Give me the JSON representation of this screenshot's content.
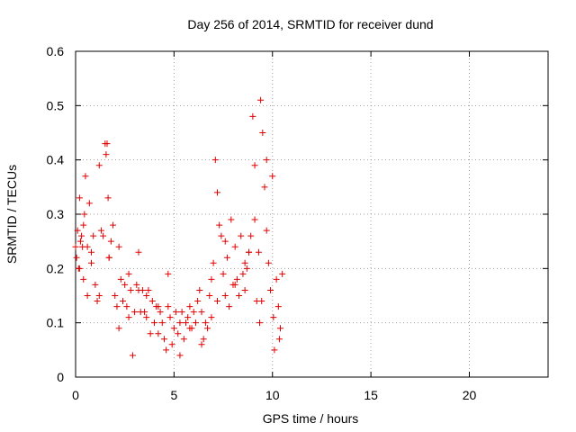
{
  "chart_data": {
    "type": "scatter",
    "title": "Day 256 of 2014, SRMTID for receiver dund",
    "xlabel": "GPS time / hours",
    "ylabel": "SRMTID / TECUs",
    "xlim": [
      0,
      24
    ],
    "ylim": [
      0,
      0.6
    ],
    "x_ticks": [
      0,
      5,
      10,
      15,
      20
    ],
    "y_ticks": [
      0,
      0.1,
      0.2,
      0.3,
      0.4,
      0.5,
      0.6
    ],
    "x_tick_labels": [
      "0",
      "5",
      "10",
      "15",
      "20"
    ],
    "y_tick_labels": [
      "0",
      "0.1",
      "0.2",
      "0.3",
      "0.4",
      "0.5",
      "0.6"
    ],
    "grid": true,
    "marker": "plus",
    "color": "#e00000",
    "series": [
      {
        "x": [
          0.0,
          0.05,
          0.1,
          0.15,
          0.2,
          0.25,
          0.3,
          0.35,
          0.4,
          0.45,
          0.5,
          0.6,
          0.7,
          0.8,
          0.9,
          1.0,
          1.1,
          1.2,
          1.3,
          1.4,
          1.5,
          1.55,
          1.6,
          1.65,
          1.7,
          1.8,
          1.9,
          2.0,
          2.1,
          2.2,
          2.3,
          2.4,
          2.5,
          2.6,
          2.7,
          2.8,
          2.9,
          3.0,
          3.1,
          3.2,
          3.3,
          3.4,
          3.5,
          3.6,
          3.7,
          3.8,
          3.9,
          4.0,
          4.1,
          4.2,
          4.3,
          4.4,
          4.5,
          4.6,
          4.7,
          4.8,
          4.9,
          5.0,
          5.1,
          5.2,
          5.3,
          5.4,
          5.5,
          5.6,
          5.7,
          5.8,
          5.9,
          6.0,
          6.1,
          6.2,
          6.3,
          6.4,
          6.5,
          6.6,
          6.7,
          6.8,
          6.9,
          7.0,
          7.1,
          7.2,
          7.3,
          7.4,
          7.5,
          7.6,
          7.7,
          7.8,
          7.9,
          8.0,
          8.1,
          8.2,
          8.3,
          8.4,
          8.5,
          8.6,
          8.7,
          8.8,
          8.9,
          9.0,
          9.1,
          9.2,
          9.3,
          9.35,
          9.4,
          9.5,
          9.6,
          9.7,
          9.8,
          9.9,
          10.0,
          10.1,
          10.2,
          10.3,
          10.4,
          10.5,
          0.2,
          0.4,
          0.6,
          0.8,
          1.2,
          1.7,
          2.2,
          2.7,
          3.2,
          3.6,
          4.2,
          4.7,
          5.3,
          5.8,
          6.4,
          6.9,
          7.2,
          7.6,
          8.1,
          8.6,
          8.8,
          9.1,
          9.45,
          9.7,
          10.05,
          10.35
        ],
        "y": [
          0.24,
          0.22,
          0.27,
          0.2,
          0.33,
          0.25,
          0.26,
          0.24,
          0.18,
          0.3,
          0.37,
          0.24,
          0.32,
          0.21,
          0.26,
          0.17,
          0.14,
          0.15,
          0.27,
          0.26,
          0.43,
          0.41,
          0.43,
          0.33,
          0.22,
          0.25,
          0.28,
          0.15,
          0.13,
          0.09,
          0.18,
          0.14,
          0.17,
          0.13,
          0.19,
          0.16,
          0.04,
          0.12,
          0.17,
          0.23,
          0.12,
          0.16,
          0.12,
          0.11,
          0.16,
          0.08,
          0.14,
          0.1,
          0.13,
          0.08,
          0.12,
          0.1,
          0.07,
          0.05,
          0.13,
          0.11,
          0.06,
          0.09,
          0.12,
          0.08,
          0.04,
          0.12,
          0.07,
          0.1,
          0.11,
          0.13,
          0.09,
          0.12,
          0.1,
          0.14,
          0.16,
          0.12,
          0.07,
          0.1,
          0.09,
          0.15,
          0.18,
          0.21,
          0.4,
          0.34,
          0.28,
          0.26,
          0.19,
          0.15,
          0.22,
          0.13,
          0.29,
          0.17,
          0.24,
          0.18,
          0.15,
          0.26,
          0.19,
          0.16,
          0.2,
          0.23,
          0.26,
          0.48,
          0.39,
          0.14,
          0.23,
          0.1,
          0.51,
          0.45,
          0.35,
          0.27,
          0.21,
          0.16,
          0.37,
          0.05,
          0.18,
          0.13,
          0.09,
          0.19,
          0.2,
          0.28,
          0.15,
          0.23,
          0.39,
          0.22,
          0.24,
          0.11,
          0.16,
          0.15,
          0.13,
          0.19,
          0.1,
          0.09,
          0.06,
          0.11,
          0.14,
          0.25,
          0.17,
          0.21,
          0.23,
          0.29,
          0.14,
          0.4,
          0.11,
          0.07
        ]
      }
    ]
  }
}
